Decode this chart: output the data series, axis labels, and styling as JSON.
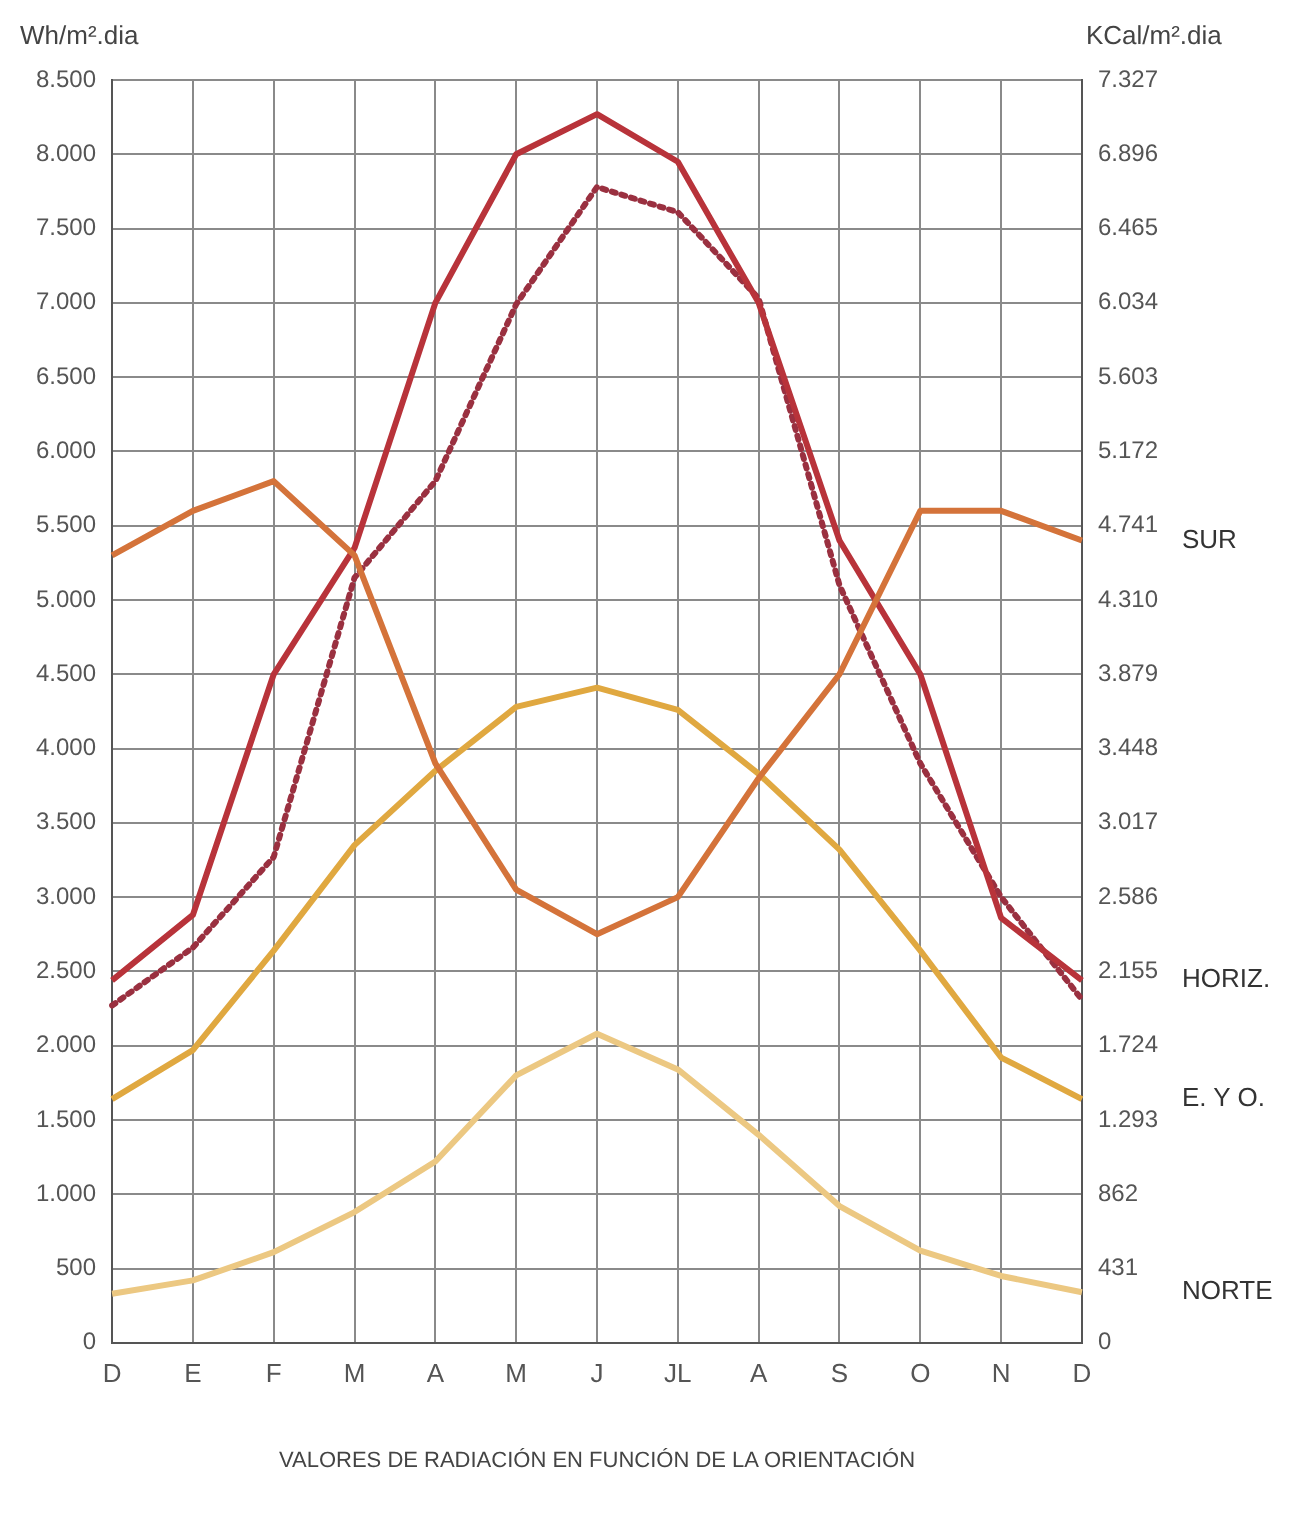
{
  "chart_data": {
    "type": "line",
    "xlabel": "VALORES DE RADIACIÓN EN FUNCIÓN DE LA ORIENTACIÓN",
    "ylabel": "Wh/m².dia",
    "y2label": "KCal/m².dia",
    "categories": [
      "D",
      "E",
      "F",
      "M",
      "A",
      "M",
      "J",
      "JL",
      "A",
      "S",
      "O",
      "N",
      "D"
    ],
    "ylim": [
      0,
      8500
    ],
    "yticks": [
      0,
      500,
      {
        "value": 1000,
        "label": "1.000"
      },
      {
        "value": 1500,
        "label": "1.500"
      },
      {
        "value": 2000,
        "label": "2.000"
      },
      {
        "value": 2500,
        "label": "2.500"
      },
      {
        "value": 3000,
        "label": "3.000"
      },
      {
        "value": 3500,
        "label": "3.500"
      },
      {
        "value": 4000,
        "label": "4.000"
      },
      {
        "value": 4500,
        "label": "4.500"
      },
      {
        "value": 5000,
        "label": "5.000"
      },
      {
        "value": 5500,
        "label": "5.500"
      },
      {
        "value": 6000,
        "label": "6.000"
      },
      {
        "value": 6500,
        "label": "6.500"
      },
      {
        "value": 7000,
        "label": "7.000"
      },
      {
        "value": 7500,
        "label": "7.500"
      },
      {
        "value": 8000,
        "label": "8.000"
      },
      {
        "value": 8500,
        "label": "8.500"
      }
    ],
    "y2lim": [
      0,
      7327
    ],
    "y2ticks": [
      0,
      431,
      862,
      {
        "value": 1293,
        "label": "1.293"
      },
      {
        "value": 1724,
        "label": "1.724"
      },
      {
        "value": 2155,
        "label": "2.155"
      },
      {
        "value": 2586,
        "label": "2.586"
      },
      {
        "value": 3017,
        "label": "3.017"
      },
      {
        "value": 3448,
        "label": "3.448"
      },
      {
        "value": 3879,
        "label": "3.879"
      },
      {
        "value": 4310,
        "label": "4.310"
      },
      {
        "value": 4741,
        "label": "4.741"
      },
      {
        "value": 5172,
        "label": "5.172"
      },
      {
        "value": 5603,
        "label": "5.603"
      },
      {
        "value": 6034,
        "label": "6.034"
      },
      {
        "value": 6465,
        "label": "6.465"
      },
      {
        "value": 6896,
        "label": "6.896"
      },
      {
        "value": 7327,
        "label": "7.327"
      }
    ],
    "grid": true,
    "legend": false,
    "marker": "none",
    "series": [
      {
        "name": "SUR",
        "color": "#d4733a",
        "values": [
          5300,
          5600,
          5800,
          5300,
          3900,
          3050,
          2750,
          3000,
          3800,
          4500,
          5600,
          5600,
          5400
        ]
      },
      {
        "name": "HORIZ.",
        "color": "#b8333a",
        "values": [
          2440,
          2880,
          4500,
          5350,
          7000,
          8000,
          8270,
          7950,
          7000,
          5400,
          4500,
          2860,
          2440
        ]
      },
      {
        "color": "#9a3040",
        "line_style": "dotted",
        "values": [
          2270,
          2660,
          3270,
          5150,
          5800,
          6990,
          7780,
          7610,
          7030,
          5100,
          3900,
          3000,
          2310
        ]
      },
      {
        "name": "E. Y O.",
        "color": "#e0a840",
        "values": [
          1640,
          1970,
          2640,
          3350,
          3850,
          4280,
          4410,
          4260,
          3830,
          3320,
          2640,
          1920,
          1640
        ]
      },
      {
        "name": "NORTE",
        "color": "#ecc882",
        "values": [
          330,
          420,
          610,
          880,
          1220,
          1800,
          2080,
          1840,
          1400,
          920,
          620,
          450,
          340
        ]
      }
    ]
  }
}
